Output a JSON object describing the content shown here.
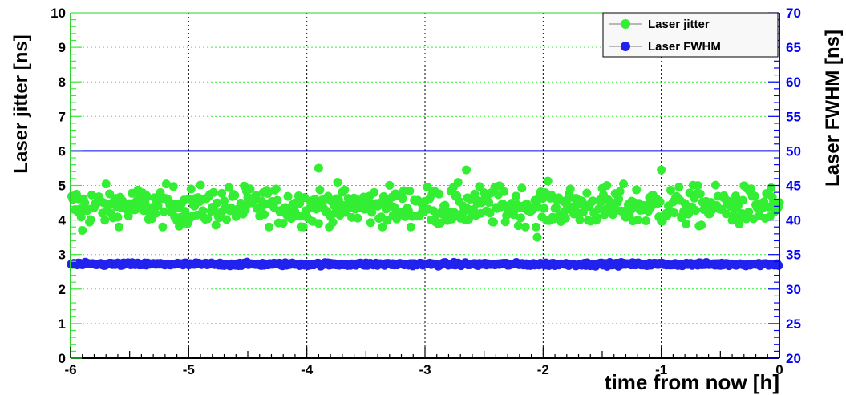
{
  "chart_data": {
    "type": "scatter",
    "xlabel": "time from now [h]",
    "ylabel_left": "Laser jitter [ns]",
    "ylabel_right": "Laser FWHM [ns]",
    "xlim": [
      -6,
      0
    ],
    "ylim_left": [
      0,
      10
    ],
    "ylim_right": [
      20,
      70
    ],
    "x_ticks": [
      "-6",
      "-5",
      "-4",
      "-3",
      "-2",
      "-1",
      "0"
    ],
    "y_ticks_left": [
      "0",
      "1",
      "2",
      "3",
      "4",
      "5",
      "6",
      "7",
      "8",
      "9",
      "10"
    ],
    "y_ticks_right": [
      "20",
      "25",
      "30",
      "35",
      "40",
      "45",
      "50",
      "55",
      "60",
      "65",
      "70"
    ],
    "grid": true,
    "legend_position": "top-right",
    "reference_line": {
      "axis": "right",
      "value": 50,
      "color": "#0000ff"
    },
    "series": [
      {
        "name": "Laser jitter",
        "axis": "left",
        "color": "#33ee33",
        "typical_range": [
          3.8,
          5.0
        ],
        "mean": 4.4,
        "notable_points": [
          {
            "x": -5.9,
            "y": 3.7
          },
          {
            "x": -3.9,
            "y": 5.5
          },
          {
            "x": -2.65,
            "y": 5.45
          },
          {
            "x": -1.0,
            "y": 5.45
          },
          {
            "x": -2.05,
            "y": 3.5
          }
        ]
      },
      {
        "name": "Laser FWHM",
        "axis": "right",
        "color": "#2222ee",
        "mean": 33.6,
        "typical_range": [
          33.2,
          34.0
        ]
      }
    ]
  }
}
